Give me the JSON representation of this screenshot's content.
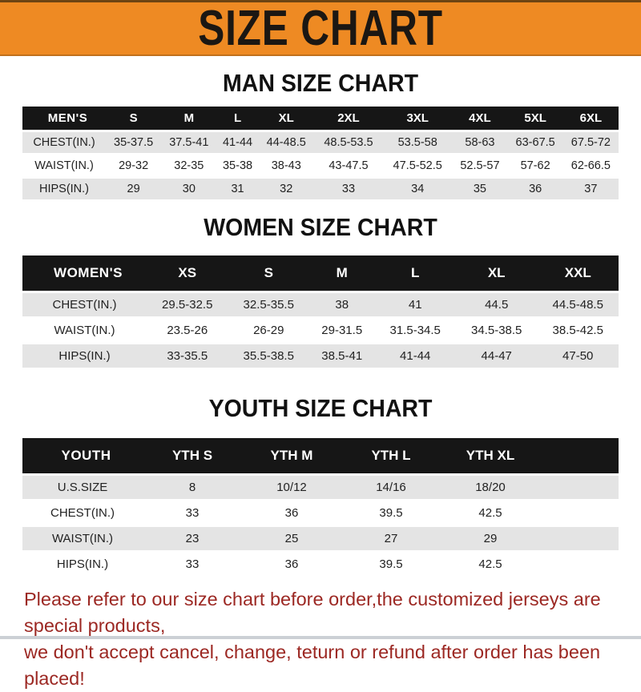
{
  "banner": {
    "title": "SIZE CHART",
    "bg_color": "#ee8a23",
    "text_color": "#1b1713"
  },
  "colors": {
    "table_header_bg": "#161616",
    "table_header_text": "#ffffff",
    "row_gray": "#e4e4e4",
    "row_white": "#ffffff",
    "footer_red": "#9c2823"
  },
  "sections": [
    {
      "heading": "MAN SIZE CHART",
      "table": {
        "label": "MEN'S",
        "columns": [
          "S",
          "M",
          "L",
          "XL",
          "2XL",
          "3XL",
          "4XL",
          "5XL",
          "6XL"
        ],
        "has_filler_column": false,
        "rows": [
          {
            "label": "CHEST(IN.)",
            "values": [
              "35-37.5",
              "37.5-41",
              "41-44",
              "44-48.5",
              "48.5-53.5",
              "53.5-58",
              "58-63",
              "63-67.5",
              "67.5-72"
            ]
          },
          {
            "label": "WAIST(IN.)",
            "values": [
              "29-32",
              "32-35",
              "35-38",
              "38-43",
              "43-47.5",
              "47.5-52.5",
              "52.5-57",
              "57-62",
              "62-66.5"
            ]
          },
          {
            "label": "HIPS(IN.)",
            "values": [
              "29",
              "30",
              "31",
              "32",
              "33",
              "34",
              "35",
              "36",
              "37"
            ]
          }
        ]
      }
    },
    {
      "heading": "WOMEN SIZE CHART",
      "table": {
        "label": "WOMEN'S",
        "columns": [
          "XS",
          "S",
          "M",
          "L",
          "XL",
          "XXL"
        ],
        "has_filler_column": false,
        "rows": [
          {
            "label": "CHEST(IN.)",
            "values": [
              "29.5-32.5",
              "32.5-35.5",
              "38",
              "41",
              "44.5",
              "44.5-48.5"
            ]
          },
          {
            "label": "WAIST(IN.)",
            "values": [
              "23.5-26",
              "26-29",
              "29-31.5",
              "31.5-34.5",
              "34.5-38.5",
              "38.5-42.5"
            ]
          },
          {
            "label": "HIPS(IN.)",
            "values": [
              "33-35.5",
              "35.5-38.5",
              "38.5-41",
              "41-44",
              "44-47",
              "47-50"
            ]
          }
        ]
      }
    },
    {
      "heading": "YOUTH SIZE CHART",
      "table": {
        "label": "YOUTH",
        "columns": [
          "YTH S",
          "YTH M",
          "YTH L",
          "YTH XL"
        ],
        "has_filler_column": true,
        "rows": [
          {
            "label": "U.S.SIZE",
            "values": [
              "8",
              "10/12",
              "14/16",
              "18/20"
            ]
          },
          {
            "label": "CHEST(IN.)",
            "values": [
              "33",
              "36",
              "39.5",
              "42.5"
            ]
          },
          {
            "label": "WAIST(IN.)",
            "values": [
              "23",
              "25",
              "27",
              "29"
            ]
          },
          {
            "label": "HIPS(IN.)",
            "values": [
              "33",
              "36",
              "39.5",
              "42.5"
            ]
          }
        ]
      }
    }
  ],
  "footer": {
    "line1": "Please refer to our size chart before order,the customized jerseys are special products,",
    "line2": "we don't accept cancel, change, teturn or refund after order has been placed!"
  }
}
